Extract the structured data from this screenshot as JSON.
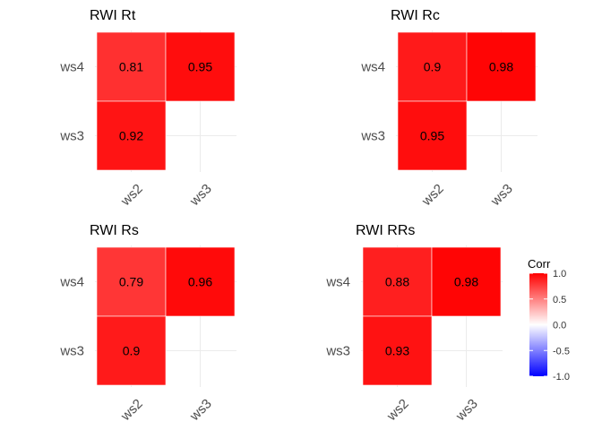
{
  "chart_data": [
    {
      "type": "heatmap",
      "title": "RWI Rt",
      "x_categories": [
        "ws2",
        "ws3"
      ],
      "y_categories": [
        "ws3",
        "ws4"
      ],
      "cells": [
        {
          "x": "ws2",
          "y": "ws4",
          "value": 0.81,
          "label": "0.81"
        },
        {
          "x": "ws3",
          "y": "ws4",
          "value": 0.95,
          "label": "0.95"
        },
        {
          "x": "ws2",
          "y": "ws3",
          "value": 0.92,
          "label": "0.92"
        }
      ]
    },
    {
      "type": "heatmap",
      "title": "RWI Rc",
      "x_categories": [
        "ws2",
        "ws3"
      ],
      "y_categories": [
        "ws3",
        "ws4"
      ],
      "cells": [
        {
          "x": "ws2",
          "y": "ws4",
          "value": 0.9,
          "label": "0.9"
        },
        {
          "x": "ws3",
          "y": "ws4",
          "value": 0.98,
          "label": "0.98"
        },
        {
          "x": "ws2",
          "y": "ws3",
          "value": 0.95,
          "label": "0.95"
        }
      ]
    },
    {
      "type": "heatmap",
      "title": "RWI Rs",
      "x_categories": [
        "ws2",
        "ws3"
      ],
      "y_categories": [
        "ws3",
        "ws4"
      ],
      "cells": [
        {
          "x": "ws2",
          "y": "ws4",
          "value": 0.79,
          "label": "0.79"
        },
        {
          "x": "ws3",
          "y": "ws4",
          "value": 0.96,
          "label": "0.96"
        },
        {
          "x": "ws2",
          "y": "ws3",
          "value": 0.9,
          "label": "0.9"
        }
      ]
    },
    {
      "type": "heatmap",
      "title": "RWI RRs",
      "x_categories": [
        "ws2",
        "ws3"
      ],
      "y_categories": [
        "ws3",
        "ws4"
      ],
      "cells": [
        {
          "x": "ws2",
          "y": "ws4",
          "value": 0.88,
          "label": "0.88"
        },
        {
          "x": "ws3",
          "y": "ws4",
          "value": 0.98,
          "label": "0.98"
        },
        {
          "x": "ws2",
          "y": "ws3",
          "value": 0.93,
          "label": "0.93"
        }
      ]
    }
  ],
  "legend": {
    "title": "Corr",
    "ticks": [
      "1.0",
      "0.5",
      "0.0",
      "-0.5",
      "-1.0"
    ],
    "tick_values": [
      1.0,
      0.5,
      0.0,
      -0.5,
      -1.0
    ],
    "range": [
      -1.0,
      1.0
    ],
    "colors": {
      "low": "#0000ff",
      "mid": "#ffffff",
      "high": "#ff0000"
    }
  },
  "grid_color": "#ebebeb",
  "cell_outline": "#ffffff"
}
